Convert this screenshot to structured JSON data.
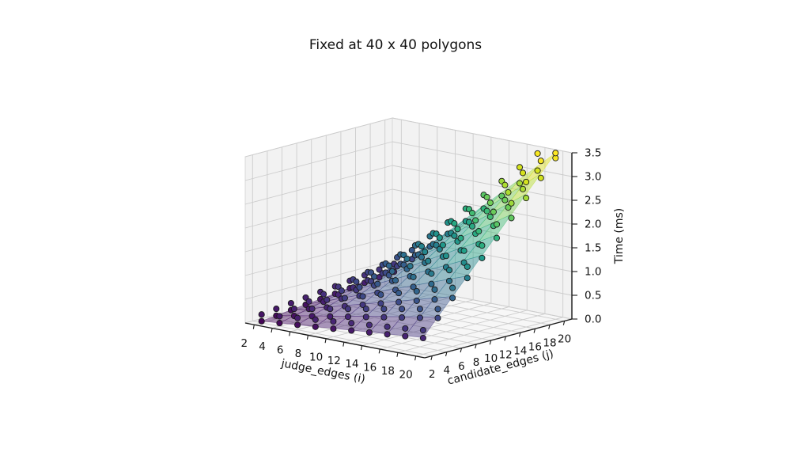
{
  "chart_data": {
    "type": "surface3d",
    "title": "Fixed at 40 x 40 polygons",
    "xlabel": "judge_edges (i)",
    "ylabel": "candidate_edges (j)",
    "zlabel": "Time (ms)",
    "x": [
      2,
      4,
      6,
      8,
      10,
      12,
      14,
      16,
      18,
      20
    ],
    "y": [
      2,
      4,
      6,
      8,
      10,
      12,
      14,
      16,
      18,
      20
    ],
    "x_tick_labels": [
      "2",
      "4",
      "6",
      "8",
      "10",
      "12",
      "14",
      "16",
      "18",
      "20"
    ],
    "y_tick_labels": [
      "2",
      "4",
      "6",
      "8",
      "10",
      "12",
      "14",
      "16",
      "18",
      "20"
    ],
    "z_tick_labels": [
      "0.0",
      "0.5",
      "1.0",
      "1.5",
      "2.0",
      "2.5",
      "3.0",
      "3.5"
    ],
    "xlim": [
      1,
      21
    ],
    "ylim": [
      1,
      21
    ],
    "zlim": [
      0,
      3.5
    ],
    "z": [
      [
        0.035,
        0.07,
        0.105,
        0.14,
        0.175,
        0.21,
        0.245,
        0.28,
        0.315,
        0.35
      ],
      [
        0.07,
        0.14,
        0.21,
        0.28,
        0.35,
        0.42,
        0.49,
        0.56,
        0.63,
        0.7
      ],
      [
        0.105,
        0.21,
        0.315,
        0.42,
        0.525,
        0.63,
        0.735,
        0.84,
        0.945,
        1.05
      ],
      [
        0.14,
        0.28,
        0.42,
        0.56,
        0.7,
        0.84,
        0.98,
        1.12,
        1.26,
        1.4
      ],
      [
        0.175,
        0.35,
        0.525,
        0.7,
        0.875,
        1.05,
        1.225,
        1.4,
        1.575,
        1.75
      ],
      [
        0.21,
        0.42,
        0.63,
        0.84,
        1.05,
        1.26,
        1.47,
        1.68,
        1.89,
        2.1
      ],
      [
        0.245,
        0.49,
        0.735,
        0.98,
        1.225,
        1.47,
        1.715,
        1.96,
        2.205,
        2.45
      ],
      [
        0.28,
        0.56,
        0.84,
        1.12,
        1.4,
        1.68,
        1.96,
        2.24,
        2.52,
        2.8
      ],
      [
        0.315,
        0.63,
        0.945,
        1.26,
        1.575,
        1.89,
        2.205,
        2.52,
        2.835,
        3.15
      ],
      [
        0.35,
        0.7,
        1.05,
        1.4,
        1.75,
        2.1,
        2.45,
        2.8,
        3.15,
        3.5
      ]
    ],
    "scatter_trial_deltas": [
      {
        "scale": 0.97,
        "offset": 0.0
      },
      {
        "scale": 1.04,
        "offset": 0.14
      }
    ],
    "surface_alpha": 0.45,
    "colormap": "viridis",
    "colormap_stops": [
      [
        68,
        1,
        84
      ],
      [
        72,
        40,
        120
      ],
      [
        62,
        74,
        137
      ],
      [
        49,
        104,
        142
      ],
      [
        38,
        130,
        142
      ],
      [
        31,
        158,
        137
      ],
      [
        53,
        183,
        121
      ],
      [
        109,
        205,
        89
      ],
      [
        180,
        222,
        44
      ],
      [
        223,
        227,
        24
      ],
      [
        253,
        231,
        37
      ]
    ],
    "grid_on": true,
    "colors": {
      "background": "#ffffff",
      "pane_wall": "#f2f2f2",
      "pane_floor": "#f7f7f7",
      "grid": "#cccccc",
      "pane_edge": "#d8d8d8",
      "axis_line": "#1a1a1a",
      "text": "#111111",
      "point_edge": "#1a1a1a"
    }
  }
}
